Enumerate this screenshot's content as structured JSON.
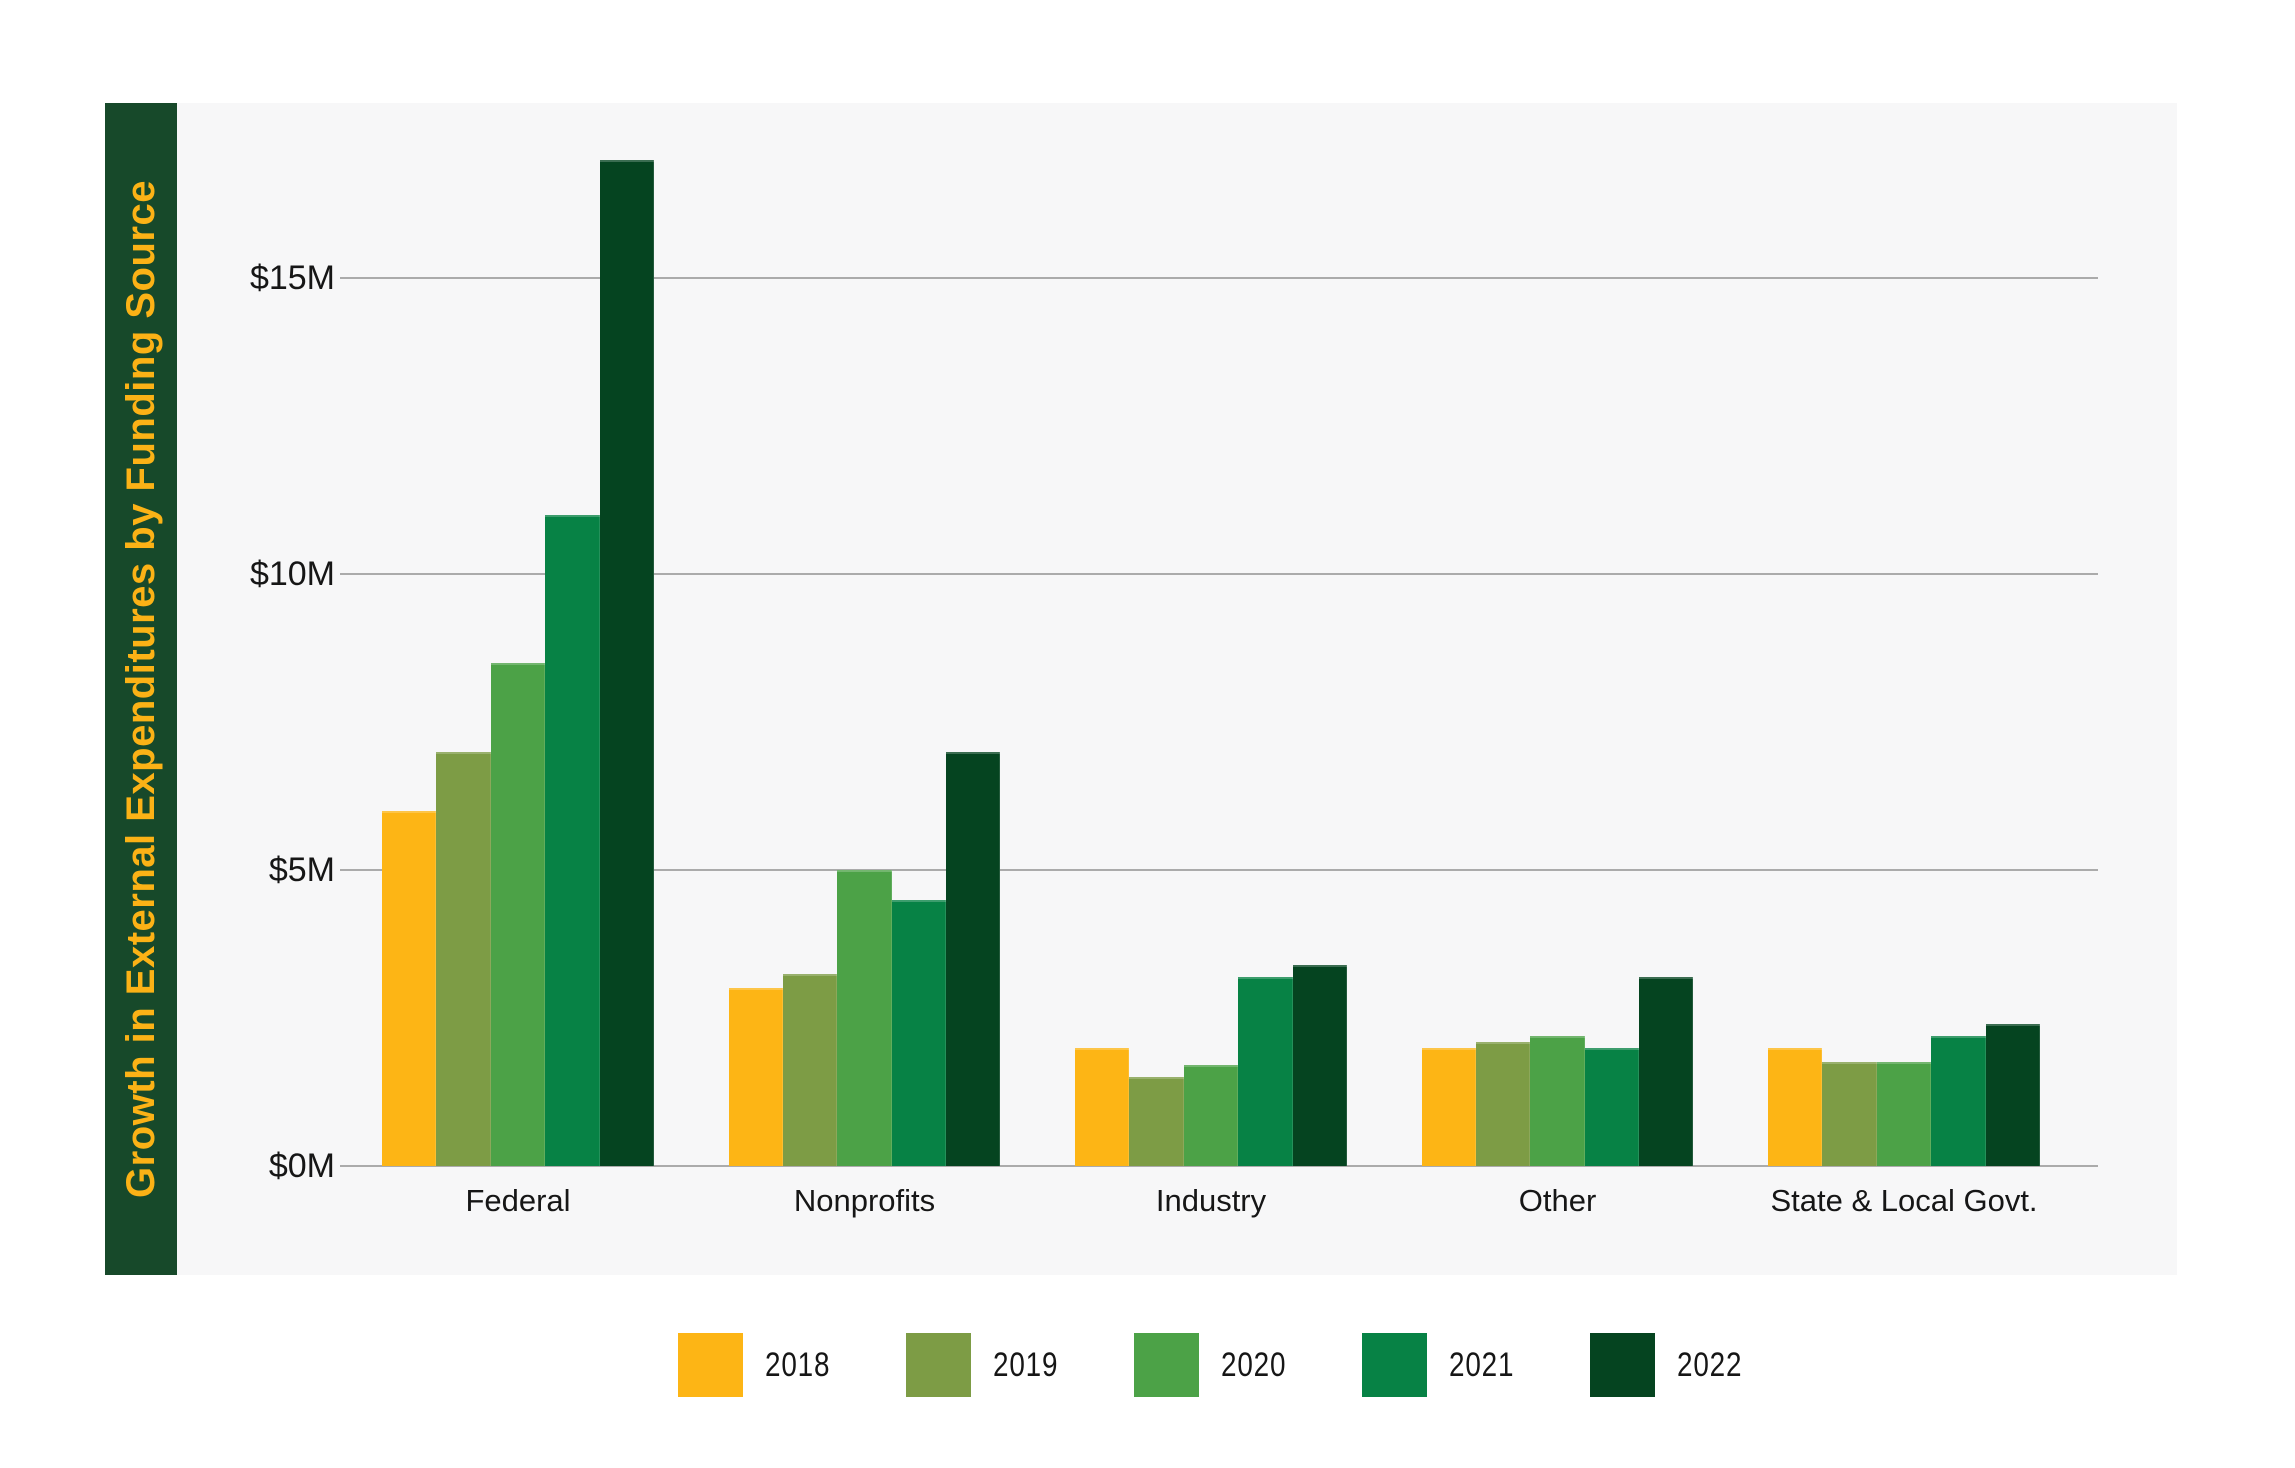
{
  "title": "Growth in External Expenditures by Funding Source",
  "colors": {
    "page_bg": "#FFFFFF",
    "title_band_bg": "#17492A",
    "title_text": "#FBB216",
    "panel_bg": "#F7F7F8",
    "gridline": "#ABABAB",
    "axis_text": "#161616"
  },
  "y_axis": {
    "ticks": [
      {
        "label": "$15M",
        "value": 15
      },
      {
        "label": "$10M",
        "value": 10
      },
      {
        "label": "$5M",
        "value": 5
      },
      {
        "label": "$0M",
        "value": 0
      }
    ]
  },
  "legend": {
    "items": [
      {
        "label": "2018",
        "color": "#FDB515"
      },
      {
        "label": "2019",
        "color": "#7D9C45"
      },
      {
        "label": "2020",
        "color": "#4CA247"
      },
      {
        "label": "2021",
        "color": "#078245"
      },
      {
        "label": "2022",
        "color": "#054420"
      }
    ]
  },
  "chart_data": {
    "type": "bar",
    "title": "Growth in External Expenditures by Funding Source",
    "categories": [
      "Federal",
      "Nonprofits",
      "Industry",
      "Other",
      "State & Local Govt."
    ],
    "series": [
      {
        "name": "2018",
        "color": "#FDB515",
        "values": [
          6.0,
          3.0,
          2.0,
          2.0,
          2.0
        ]
      },
      {
        "name": "2019",
        "color": "#7D9C45",
        "values": [
          7.0,
          3.25,
          1.5,
          2.1,
          1.75
        ]
      },
      {
        "name": "2020",
        "color": "#4CA247",
        "values": [
          8.5,
          5.0,
          1.7,
          2.2,
          1.75
        ]
      },
      {
        "name": "2021",
        "color": "#078245",
        "values": [
          11.0,
          4.5,
          3.2,
          2.0,
          2.2
        ]
      },
      {
        "name": "2022",
        "color": "#054420",
        "values": [
          17.0,
          7.0,
          3.4,
          3.2,
          2.4
        ]
      }
    ],
    "ylabel": "",
    "xlabel": "",
    "ylim": [
      0,
      17.9
    ],
    "gridline_values": [
      0,
      5,
      10,
      15
    ],
    "grid": true,
    "legend_position": "bottom",
    "units": "USD millions (M)"
  }
}
